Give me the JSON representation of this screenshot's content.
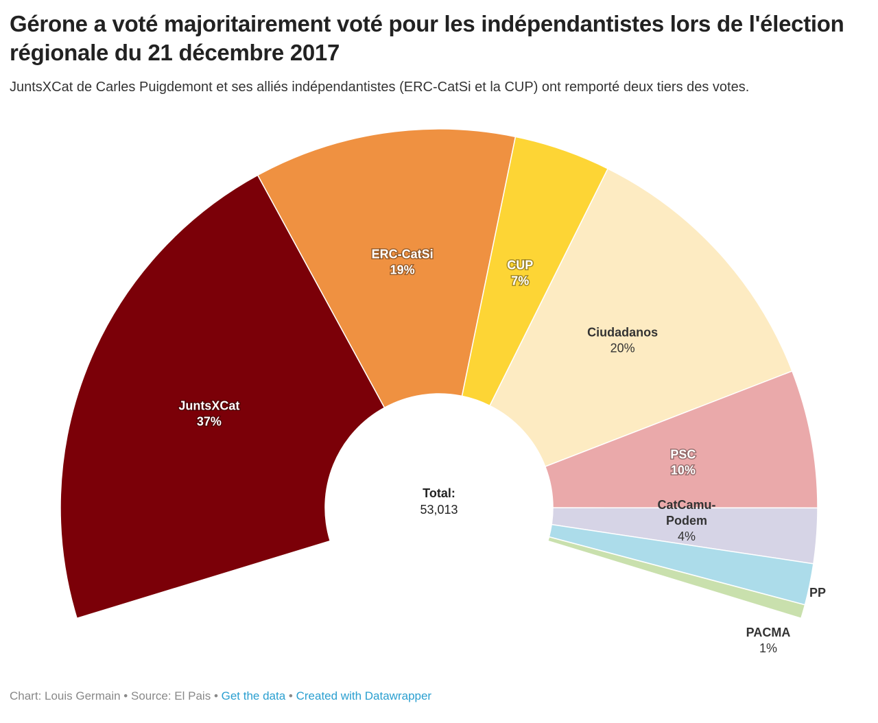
{
  "title": "Gérone a voté majoritairement voté pour les indépendantistes lors de l'élection régionale du 21 décembre 2017",
  "subtitle": "JuntsXCat de Carles Puigdemont et ses alliés indépendantistes (ERC-CatSi et la CUP) ont remporté deux tiers des votes.",
  "footer": {
    "credit": "Chart: Louis Germain",
    "sep": " • ",
    "source": "Source: El Pais",
    "get_data": "Get the data",
    "created_with": "Created with Datawrapper"
  },
  "chart_data": {
    "type": "pie",
    "variant": "election-donut (semicircle)",
    "total_label": "Total:",
    "total_value": "53,013",
    "slices": [
      {
        "name": "JuntsXCat",
        "label": "37%",
        "value": 37,
        "color": "#7b0008",
        "text": "light"
      },
      {
        "name": "ERC-CatSi",
        "label": "19%",
        "value": 19,
        "color": "#ef9141",
        "text": "light"
      },
      {
        "name": "CUP",
        "label": "7%",
        "value": 7,
        "color": "#fdd535",
        "text": "light"
      },
      {
        "name": "Ciudadanos",
        "label": "20%",
        "value": 20,
        "color": "#fdebc2",
        "text": "dark"
      },
      {
        "name": "PSC",
        "label": "10%",
        "value": 10,
        "color": "#eaa9aa",
        "text": "light"
      },
      {
        "name": "CatCamu-Podem",
        "label": "4%",
        "value": 4,
        "color": "#d6d4e6",
        "text": "dark"
      },
      {
        "name": "PP",
        "label": "",
        "value": 3,
        "color": "#acdcea",
        "text": "dark"
      },
      {
        "name": "PACMA",
        "label": "1%",
        "value": 1,
        "color": "#c9e0ad",
        "text": "dark"
      }
    ]
  }
}
